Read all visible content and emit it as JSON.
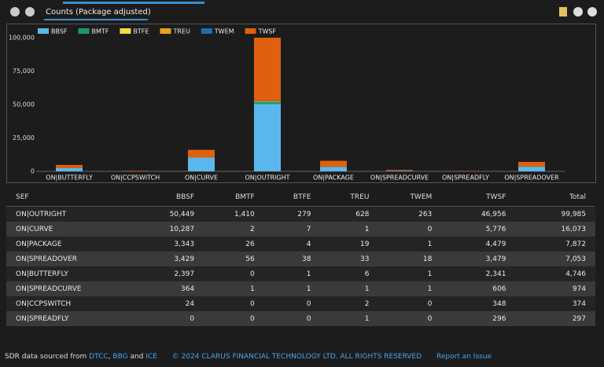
{
  "header": {
    "tab": "Counts (Package adjusted)"
  },
  "chart_data": {
    "type": "bar",
    "stacked": true,
    "categories": [
      "ON|BUTTERFLY",
      "ON|CCPSWITCH",
      "ON|CURVE",
      "ON|OUTRIGHT",
      "ON|PACKAGE",
      "ON|SPREADCURVE",
      "ON|SPREADFLY",
      "ON|SPREADOVER"
    ],
    "series": [
      {
        "name": "BBSF",
        "color": "#5bb8ec",
        "values": [
          2397,
          24,
          10287,
          50449,
          3343,
          364,
          0,
          3429
        ]
      },
      {
        "name": "BMTF",
        "color": "#1a9a6c",
        "values": [
          0,
          0,
          2,
          1410,
          26,
          1,
          0,
          56
        ]
      },
      {
        "name": "BTFE",
        "color": "#f0e040",
        "values": [
          1,
          0,
          7,
          279,
          4,
          1,
          0,
          38
        ]
      },
      {
        "name": "TREU",
        "color": "#e8a020",
        "values": [
          6,
          2,
          1,
          628,
          19,
          1,
          1,
          33
        ]
      },
      {
        "name": "TWEM",
        "color": "#1f6eb0",
        "values": [
          1,
          0,
          0,
          263,
          1,
          1,
          0,
          18
        ]
      },
      {
        "name": "TWSF",
        "color": "#e06010",
        "values": [
          2341,
          348,
          5776,
          46956,
          4479,
          606,
          296,
          3479
        ]
      }
    ],
    "ylim": [
      0,
      100000
    ],
    "yticks": [
      0,
      {
        "value": 25000,
        "label": "25,000"
      },
      {
        "value": 50000,
        "label": "50,000"
      },
      {
        "value": 75000,
        "label": "75,000"
      },
      {
        "value": 100000,
        "label": "100,000"
      }
    ],
    "legend": "top-left"
  },
  "table": {
    "columns": [
      "SEF",
      "BBSF",
      "BMTF",
      "BTFE",
      "TREU",
      "TWEM",
      "TWSF",
      "Total"
    ],
    "rows": [
      [
        "ON|OUTRIGHT",
        "50,449",
        "1,410",
        "279",
        "628",
        "263",
        "46,956",
        "99,985"
      ],
      [
        "ON|CURVE",
        "10,287",
        "2",
        "7",
        "1",
        "0",
        "5,776",
        "16,073"
      ],
      [
        "ON|PACKAGE",
        "3,343",
        "26",
        "4",
        "19",
        "1",
        "4,479",
        "7,872"
      ],
      [
        "ON|SPREADOVER",
        "3,429",
        "56",
        "38",
        "33",
        "18",
        "3,479",
        "7,053"
      ],
      [
        "ON|BUTTERFLY",
        "2,397",
        "0",
        "1",
        "6",
        "1",
        "2,341",
        "4,746"
      ],
      [
        "ON|SPREADCURVE",
        "364",
        "1",
        "1",
        "1",
        "1",
        "606",
        "974"
      ],
      [
        "ON|CCPSWITCH",
        "24",
        "0",
        "0",
        "2",
        "0",
        "348",
        "374"
      ],
      [
        "ON|SPREADFLY",
        "0",
        "0",
        "0",
        "1",
        "0",
        "296",
        "297"
      ]
    ]
  },
  "footer": {
    "prefix": "SDR data sourced from",
    "link1": "DTCC",
    "sep": ",",
    "link2": "BBG",
    "and": "and",
    "link3": "ICE",
    "copyright": "© 2024 CLARUS FINANCIAL TECHNOLOGY LTD. ALL RIGHTS RESERVED",
    "report": "Report an Issue"
  }
}
